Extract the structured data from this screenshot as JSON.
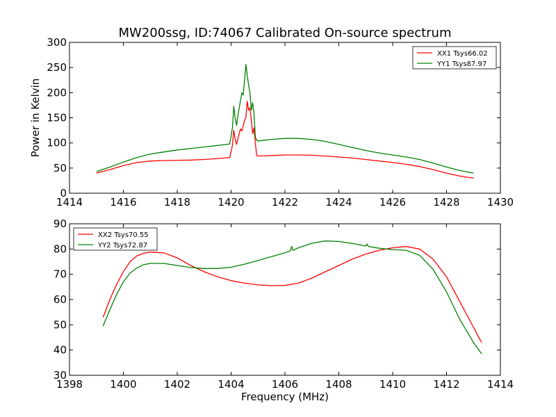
{
  "title": "MW200ssg, ID:74067 Calibrated On-source spectrum",
  "chart_data": [
    {
      "type": "line",
      "panel": "top",
      "xlabel": "",
      "ylabel": "Power in Kelvin",
      "xlim": [
        1414,
        1430
      ],
      "ylim": [
        0,
        300
      ],
      "xticks": [
        1414,
        1416,
        1418,
        1420,
        1422,
        1424,
        1426,
        1428,
        1430
      ],
      "yticks": [
        0,
        50,
        100,
        150,
        200,
        250,
        300
      ],
      "legend_position": "top-right",
      "grid": false,
      "series": [
        {
          "name": "XX1 Tsys66.02",
          "color": "#ff0000",
          "points": [
            [
              1415.0,
              40
            ],
            [
              1415.5,
              47
            ],
            [
              1416.0,
              55
            ],
            [
              1416.5,
              61
            ],
            [
              1417.0,
              64
            ],
            [
              1417.5,
              65
            ],
            [
              1418.0,
              65.5
            ],
            [
              1418.5,
              66
            ],
            [
              1419.0,
              67
            ],
            [
              1419.5,
              69
            ],
            [
              1419.95,
              71
            ],
            [
              1420.05,
              95
            ],
            [
              1420.1,
              125
            ],
            [
              1420.15,
              108
            ],
            [
              1420.2,
              97
            ],
            [
              1420.27,
              112
            ],
            [
              1420.35,
              128
            ],
            [
              1420.4,
              124
            ],
            [
              1420.45,
              133
            ],
            [
              1420.5,
              145
            ],
            [
              1420.55,
              150
            ],
            [
              1420.6,
              183
            ],
            [
              1420.65,
              165
            ],
            [
              1420.7,
              170
            ],
            [
              1420.75,
              145
            ],
            [
              1420.8,
              118
            ],
            [
              1420.85,
              130
            ],
            [
              1420.9,
              100
            ],
            [
              1420.95,
              75
            ],
            [
              1421.0,
              74
            ],
            [
              1421.5,
              75
            ],
            [
              1422.0,
              76
            ],
            [
              1422.5,
              76
            ],
            [
              1423.0,
              75.5
            ],
            [
              1423.5,
              74
            ],
            [
              1424.0,
              72
            ],
            [
              1424.5,
              70
            ],
            [
              1425.0,
              67
            ],
            [
              1425.5,
              64
            ],
            [
              1426.0,
              61
            ],
            [
              1426.5,
              57.5
            ],
            [
              1427.0,
              53
            ],
            [
              1427.5,
              47
            ],
            [
              1428.0,
              40
            ],
            [
              1428.5,
              34
            ],
            [
              1429.0,
              30
            ]
          ]
        },
        {
          "name": "YY1 Tsys87.97",
          "color": "#008000",
          "points": [
            [
              1415.0,
              43
            ],
            [
              1415.5,
              52
            ],
            [
              1416.0,
              62
            ],
            [
              1416.5,
              71
            ],
            [
              1417.0,
              78
            ],
            [
              1417.5,
              82
            ],
            [
              1418.0,
              86
            ],
            [
              1418.5,
              89
            ],
            [
              1419.0,
              92
            ],
            [
              1419.5,
              95
            ],
            [
              1419.95,
              98
            ],
            [
              1420.05,
              130
            ],
            [
              1420.1,
              173
            ],
            [
              1420.15,
              150
            ],
            [
              1420.2,
              135
            ],
            [
              1420.27,
              160
            ],
            [
              1420.35,
              185
            ],
            [
              1420.4,
              200
            ],
            [
              1420.45,
              195
            ],
            [
              1420.5,
              225
            ],
            [
              1420.55,
              256
            ],
            [
              1420.6,
              235
            ],
            [
              1420.65,
              215
            ],
            [
              1420.7,
              200
            ],
            [
              1420.75,
              165
            ],
            [
              1420.8,
              180
            ],
            [
              1420.85,
              160
            ],
            [
              1420.9,
              112
            ],
            [
              1420.95,
              105
            ],
            [
              1421.0,
              104
            ],
            [
              1421.5,
              107
            ],
            [
              1422.0,
              109
            ],
            [
              1422.5,
              109
            ],
            [
              1423.0,
              107
            ],
            [
              1423.5,
              103
            ],
            [
              1424.0,
              97
            ],
            [
              1424.5,
              91
            ],
            [
              1425.0,
              85
            ],
            [
              1425.5,
              80
            ],
            [
              1426.0,
              76
            ],
            [
              1426.5,
              72
            ],
            [
              1427.0,
              67
            ],
            [
              1427.5,
              60
            ],
            [
              1428.0,
              52
            ],
            [
              1428.5,
              45
            ],
            [
              1429.0,
              40
            ]
          ]
        }
      ]
    },
    {
      "type": "line",
      "panel": "bottom",
      "xlabel": "Frequency (MHz)",
      "ylabel": "",
      "xlim": [
        1398,
        1414
      ],
      "ylim": [
        30,
        90
      ],
      "xticks": [
        1398,
        1400,
        1402,
        1404,
        1406,
        1408,
        1410,
        1412,
        1414
      ],
      "yticks": [
        30,
        40,
        50,
        60,
        70,
        80,
        90
      ],
      "legend_position": "top-left",
      "grid": false,
      "series": [
        {
          "name": "XX2 Tsys70.55",
          "color": "#ff0000",
          "points": [
            [
              1399.25,
              53
            ],
            [
              1399.5,
              60
            ],
            [
              1399.75,
              66
            ],
            [
              1400.0,
              71
            ],
            [
              1400.25,
              75
            ],
            [
              1400.5,
              77.3
            ],
            [
              1400.75,
              78.3
            ],
            [
              1401.0,
              78.8
            ],
            [
              1401.5,
              78.5
            ],
            [
              1402.0,
              76.5
            ],
            [
              1402.5,
              73.5
            ],
            [
              1403.0,
              71
            ],
            [
              1403.5,
              69
            ],
            [
              1404.0,
              67.5
            ],
            [
              1404.5,
              66.5
            ],
            [
              1405.0,
              65.8
            ],
            [
              1405.5,
              65.5
            ],
            [
              1406.0,
              65.6
            ],
            [
              1406.5,
              66.5
            ],
            [
              1407.0,
              68.5
            ],
            [
              1407.5,
              71
            ],
            [
              1408.0,
              73.5
            ],
            [
              1408.5,
              76
            ],
            [
              1409.0,
              78
            ],
            [
              1409.5,
              79.5
            ],
            [
              1410.0,
              80.5
            ],
            [
              1410.5,
              81
            ],
            [
              1411.0,
              80
            ],
            [
              1411.5,
              76
            ],
            [
              1412.0,
              69
            ],
            [
              1412.5,
              59
            ],
            [
              1413.0,
              49
            ],
            [
              1413.3,
              43
            ]
          ]
        },
        {
          "name": "YY2 Tsys72.87",
          "color": "#008000",
          "points": [
            [
              1399.25,
              49.5
            ],
            [
              1399.5,
              56
            ],
            [
              1399.75,
              62
            ],
            [
              1400.0,
              67
            ],
            [
              1400.25,
              70.5
            ],
            [
              1400.5,
              72.5
            ],
            [
              1400.75,
              73.8
            ],
            [
              1401.0,
              74.3
            ],
            [
              1401.5,
              74.3
            ],
            [
              1402.0,
              73.5
            ],
            [
              1402.5,
              72.7
            ],
            [
              1403.0,
              72.3
            ],
            [
              1403.5,
              72.3
            ],
            [
              1404.0,
              72.8
            ],
            [
              1404.5,
              74
            ],
            [
              1405.0,
              75.5
            ],
            [
              1405.5,
              77
            ],
            [
              1406.0,
              78.5
            ],
            [
              1406.2,
              79.3
            ],
            [
              1406.25,
              81
            ],
            [
              1406.3,
              79.5
            ],
            [
              1406.5,
              80.5
            ],
            [
              1407.0,
              82.3
            ],
            [
              1407.5,
              83.2
            ],
            [
              1408.0,
              83
            ],
            [
              1408.5,
              82.2
            ],
            [
              1409.0,
              81.2
            ],
            [
              1409.05,
              82
            ],
            [
              1409.1,
              81
            ],
            [
              1409.5,
              80.3
            ],
            [
              1410.0,
              79.8
            ],
            [
              1410.5,
              79.5
            ],
            [
              1411.0,
              77.5
            ],
            [
              1411.5,
              72
            ],
            [
              1412.0,
              63
            ],
            [
              1412.5,
              52
            ],
            [
              1413.0,
              43
            ],
            [
              1413.3,
              38.5
            ]
          ]
        }
      ]
    }
  ]
}
